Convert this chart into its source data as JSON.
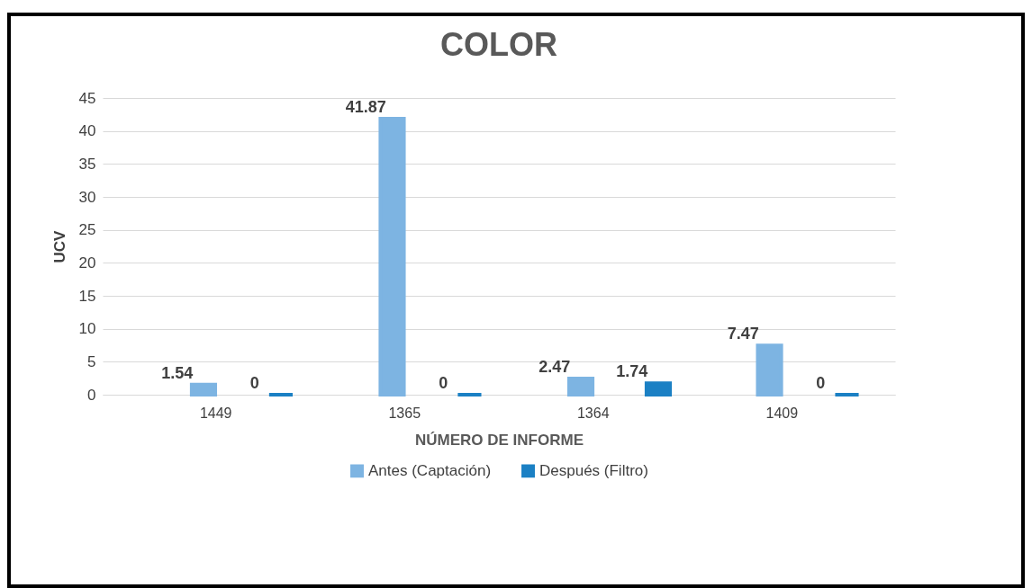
{
  "chart_data": {
    "type": "bar",
    "title": "COLOR",
    "xlabel": "NÚMERO DE INFORME",
    "ylabel": "UCV",
    "categories": [
      "1449",
      "1365",
      "1364",
      "1409"
    ],
    "series": [
      {
        "name": "Antes (Captación)",
        "color": "#7db4e2",
        "values": [
          1.54,
          41.87,
          2.47,
          7.47
        ]
      },
      {
        "name": "Después (Filtro)",
        "color": "#1b80c4",
        "values": [
          0,
          0,
          1.74,
          0
        ]
      }
    ],
    "ylim": [
      0,
      45
    ],
    "yticks": [
      0,
      5,
      10,
      15,
      20,
      25,
      30,
      35,
      40,
      45
    ],
    "grid": "y",
    "legend": "bottom",
    "data_labels": true
  }
}
